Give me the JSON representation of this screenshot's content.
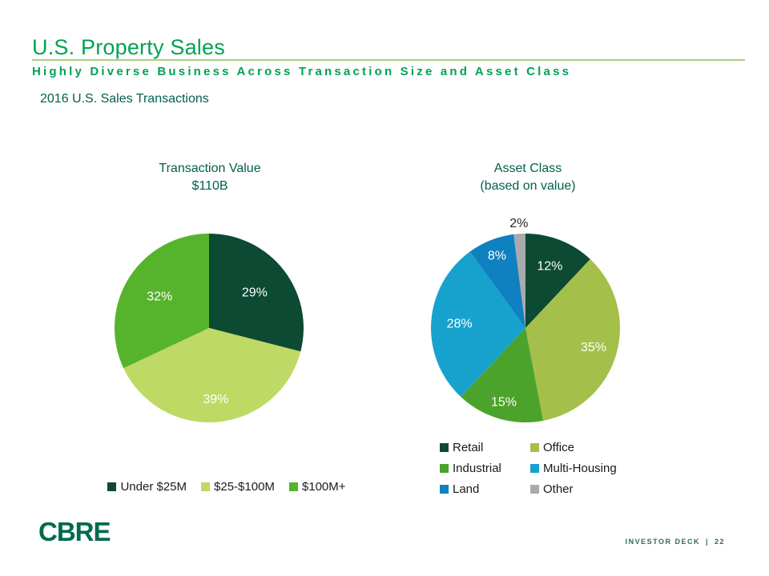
{
  "slide": {
    "title": "U.S. Property Sales",
    "subtitle": "Highly Diverse Business Across Transaction Size and Asset Class",
    "section_label": "2016 U.S. Sales Transactions",
    "footer": {
      "logo_text": "CBRE",
      "deck_label": "INVESTOR DECK",
      "separator": "|",
      "page_number": "22"
    }
  },
  "colors": {
    "title_green": "#00A254",
    "rule_light_green": "#A9CF7D",
    "heading_dark_green": "#00614C",
    "logo_green": "#006A4D",
    "label_white": "#FFFFFF",
    "label_dark": "#262626"
  },
  "chart_data": [
    {
      "type": "pie",
      "name": "transaction-value",
      "title_line1": "Transaction Value",
      "title_line2": "$110B",
      "start_angle": 0,
      "legend_position": "below-row",
      "slices": [
        {
          "label": "Under $25M",
          "value": 29,
          "color": "#0D4A33",
          "label_r": 0.61,
          "label_color": "#FFFFFF"
        },
        {
          "label": "$25-$100M",
          "value": 39,
          "color": "#BFD965",
          "label_r": 0.76,
          "label_color": "#FFFFFF"
        },
        {
          "label": "$100M+",
          "value": 32,
          "color": "#56B32C",
          "label_r": 0.62,
          "label_color": "#FFFFFF"
        }
      ]
    },
    {
      "type": "pie",
      "name": "asset-class",
      "title_line1": "Asset Class",
      "title_line2": "(based on value)",
      "start_angle": 0,
      "legend_position": "below-grid",
      "slices": [
        {
          "label": "Retail",
          "value": 12,
          "color": "#0D4A33",
          "label_r": 0.7,
          "label_color": "#FFFFFF"
        },
        {
          "label": "Office",
          "value": 35,
          "color": "#A4C04A",
          "label_r": 0.75,
          "label_color": "#FFFFFF"
        },
        {
          "label": "Industrial",
          "value": 15,
          "color": "#4CA32B",
          "label_r": 0.82,
          "label_color": "#FFFFFF"
        },
        {
          "label": "Multi-Housing",
          "value": 28,
          "color": "#17A2CE",
          "label_r": 0.7,
          "label_color": "#FFFFFF"
        },
        {
          "label": "Land",
          "value": 8,
          "color": "#0F80C0",
          "label_r": 0.82,
          "label_color": "#FFFFFF"
        },
        {
          "label": "Other",
          "value": 2,
          "color": "#A8AAAD",
          "label_r": 1.11,
          "label_color": "#262626"
        }
      ]
    }
  ]
}
